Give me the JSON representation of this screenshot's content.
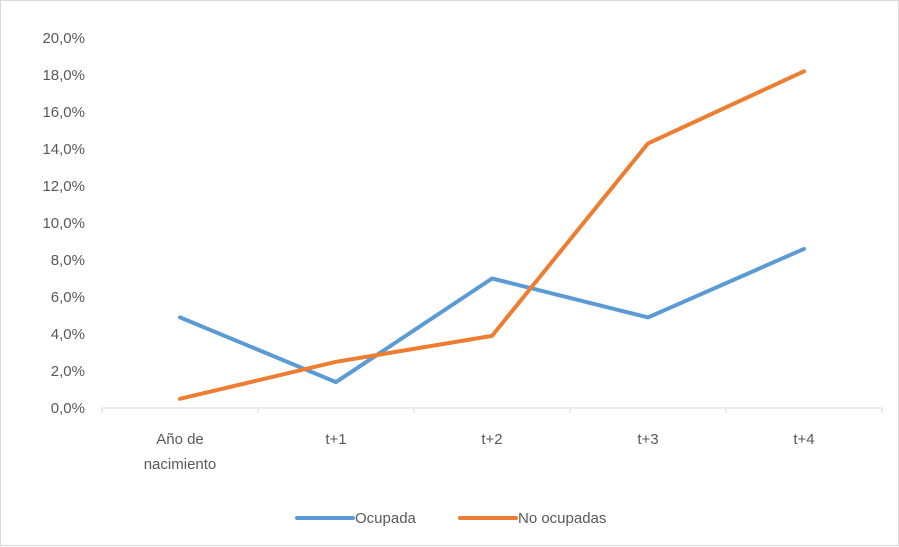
{
  "chart_data": {
    "type": "line",
    "categories": [
      [
        "Año de",
        "nacimiento"
      ],
      [
        "t+1"
      ],
      [
        "t+2"
      ],
      [
        "t+3"
      ],
      [
        "t+4"
      ]
    ],
    "y_tick_labels": [
      "0,0%",
      "2,0%",
      "4,0%",
      "6,0%",
      "8,0%",
      "10,0%",
      "12,0%",
      "14,0%",
      "16,0%",
      "18,0%",
      "20,0%"
    ],
    "ylim": [
      0,
      20
    ],
    "y_unit": "%",
    "grid": false,
    "legend_position": "bottom",
    "series": [
      {
        "name": "Ocupada",
        "color": "#5b9bd5",
        "values": [
          4.9,
          1.4,
          7.0,
          4.9,
          8.6
        ]
      },
      {
        "name": "No ocupadas",
        "color": "#ed7d31",
        "values": [
          0.5,
          2.5,
          3.9,
          14.3,
          18.2
        ]
      }
    ]
  }
}
